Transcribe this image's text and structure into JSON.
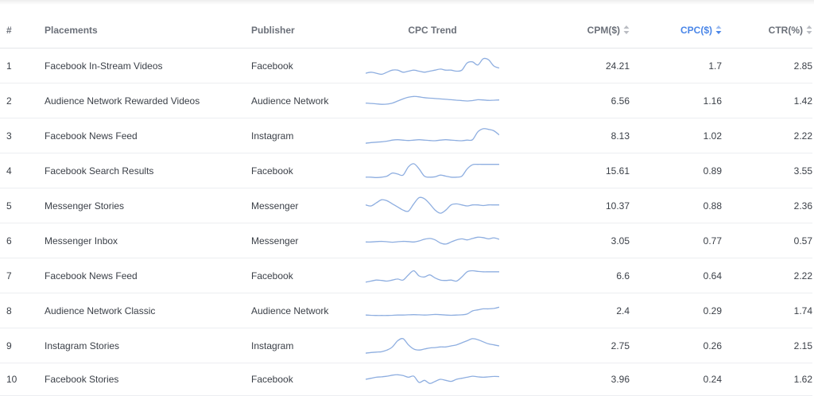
{
  "colors": {
    "accent": "#4a86e8",
    "sparkline": "#8eaee0",
    "header_text": "#6b7079",
    "sort_inactive": "#b9bcc2"
  },
  "table": {
    "headers": {
      "num": "#",
      "placements": "Placements",
      "publisher": "Publisher",
      "trend": "CPC Trend",
      "cpm": "CPM($)",
      "cpc": "CPC($)",
      "ctr": "CTR(%)"
    },
    "sorted_column": "cpc",
    "sort_direction": "descending",
    "rows": [
      {
        "num": "1",
        "placement": "Facebook In-Stream Videos",
        "publisher": "Facebook",
        "cpm": "24.21",
        "cpc": "1.7",
        "ctr": "2.85",
        "trend": [
          0.15,
          0.2,
          0.15,
          0.1,
          0.2,
          0.3,
          0.3,
          0.2,
          0.25,
          0.3,
          0.25,
          0.2,
          0.25,
          0.3,
          0.35,
          0.3,
          0.3,
          0.25,
          0.3,
          0.65,
          0.7,
          0.55,
          0.85,
          0.8,
          0.5,
          0.4
        ]
      },
      {
        "num": "2",
        "placement": "Audience Network Rewarded Videos",
        "publisher": "Audience Network",
        "cpm": "6.56",
        "cpc": "1.16",
        "ctr": "1.42",
        "trend": [
          0.4,
          0.38,
          0.36,
          0.34,
          0.35,
          0.4,
          0.5,
          0.6,
          0.68,
          0.72,
          0.7,
          0.66,
          0.64,
          0.62,
          0.6,
          0.58,
          0.56,
          0.54,
          0.52,
          0.5,
          0.52,
          0.56,
          0.55,
          0.53,
          0.54,
          0.55
        ]
      },
      {
        "num": "3",
        "placement": "Facebook News Feed",
        "publisher": "Instagram",
        "cpm": "8.13",
        "cpc": "1.02",
        "ctr": "2.22",
        "trend": [
          0.15,
          0.18,
          0.2,
          0.22,
          0.25,
          0.3,
          0.32,
          0.3,
          0.28,
          0.3,
          0.32,
          0.3,
          0.28,
          0.27,
          0.3,
          0.32,
          0.3,
          0.28,
          0.27,
          0.3,
          0.32,
          0.7,
          0.85,
          0.82,
          0.75,
          0.55
        ]
      },
      {
        "num": "4",
        "placement": "Facebook Search Results",
        "publisher": "Facebook",
        "cpm": "15.61",
        "cpc": "0.89",
        "ctr": "3.55",
        "trend": [
          0.2,
          0.2,
          0.18,
          0.2,
          0.25,
          0.4,
          0.35,
          0.3,
          0.7,
          0.85,
          0.6,
          0.25,
          0.2,
          0.22,
          0.3,
          0.25,
          0.2,
          0.2,
          0.25,
          0.6,
          0.8,
          0.82,
          0.82,
          0.82,
          0.82,
          0.82
        ]
      },
      {
        "num": "5",
        "placement": "Messenger Stories",
        "publisher": "Messenger",
        "cpm": "10.37",
        "cpc": "0.88",
        "ctr": "2.36",
        "trend": [
          0.55,
          0.5,
          0.65,
          0.8,
          0.75,
          0.6,
          0.45,
          0.3,
          0.25,
          0.6,
          0.9,
          0.85,
          0.6,
          0.3,
          0.15,
          0.3,
          0.55,
          0.6,
          0.55,
          0.5,
          0.55,
          0.55,
          0.52,
          0.55,
          0.55,
          0.55
        ]
      },
      {
        "num": "6",
        "placement": "Messenger Inbox",
        "publisher": "Messenger",
        "cpm": "3.05",
        "cpc": "0.77",
        "ctr": "0.57",
        "trend": [
          0.45,
          0.45,
          0.47,
          0.48,
          0.46,
          0.44,
          0.46,
          0.48,
          0.47,
          0.45,
          0.5,
          0.58,
          0.62,
          0.55,
          0.4,
          0.35,
          0.45,
          0.55,
          0.6,
          0.55,
          0.62,
          0.68,
          0.66,
          0.6,
          0.65,
          0.58
        ]
      },
      {
        "num": "7",
        "placement": "Facebook News Feed",
        "publisher": "Facebook",
        "cpm": "6.6",
        "cpc": "0.64",
        "ctr": "2.22",
        "trend": [
          0.2,
          0.25,
          0.3,
          0.28,
          0.25,
          0.3,
          0.35,
          0.3,
          0.55,
          0.75,
          0.5,
          0.45,
          0.55,
          0.4,
          0.3,
          0.28,
          0.3,
          0.25,
          0.45,
          0.7,
          0.75,
          0.72,
          0.7,
          0.7,
          0.7,
          0.7
        ]
      },
      {
        "num": "8",
        "placement": "Audience Network Classic",
        "publisher": "Audience Network",
        "cpm": "2.4",
        "cpc": "0.29",
        "ctr": "1.74",
        "trend": [
          0.3,
          0.29,
          0.28,
          0.28,
          0.28,
          0.29,
          0.3,
          0.3,
          0.31,
          0.32,
          0.31,
          0.3,
          0.31,
          0.33,
          0.32,
          0.3,
          0.29,
          0.3,
          0.31,
          0.35,
          0.5,
          0.55,
          0.6,
          0.6,
          0.62,
          0.68
        ]
      },
      {
        "num": "9",
        "placement": "Instagram Stories",
        "publisher": "Instagram",
        "cpm": "2.75",
        "cpc": "0.26",
        "ctr": "2.15",
        "trend": [
          0.15,
          0.18,
          0.2,
          0.22,
          0.3,
          0.45,
          0.75,
          0.85,
          0.55,
          0.35,
          0.3,
          0.35,
          0.4,
          0.42,
          0.45,
          0.45,
          0.5,
          0.55,
          0.65,
          0.75,
          0.85,
          0.8,
          0.7,
          0.6,
          0.55,
          0.5
        ]
      },
      {
        "num": "10",
        "placement": "Facebook Stories",
        "publisher": "Facebook",
        "cpm": "3.96",
        "cpc": "0.24",
        "ctr": "1.62",
        "trend": [
          0.5,
          0.55,
          0.6,
          0.62,
          0.65,
          0.7,
          0.72,
          0.68,
          0.6,
          0.65,
          0.35,
          0.45,
          0.3,
          0.4,
          0.5,
          0.45,
          0.4,
          0.5,
          0.55,
          0.6,
          0.65,
          0.62,
          0.6,
          0.62,
          0.64,
          0.63
        ]
      }
    ]
  }
}
